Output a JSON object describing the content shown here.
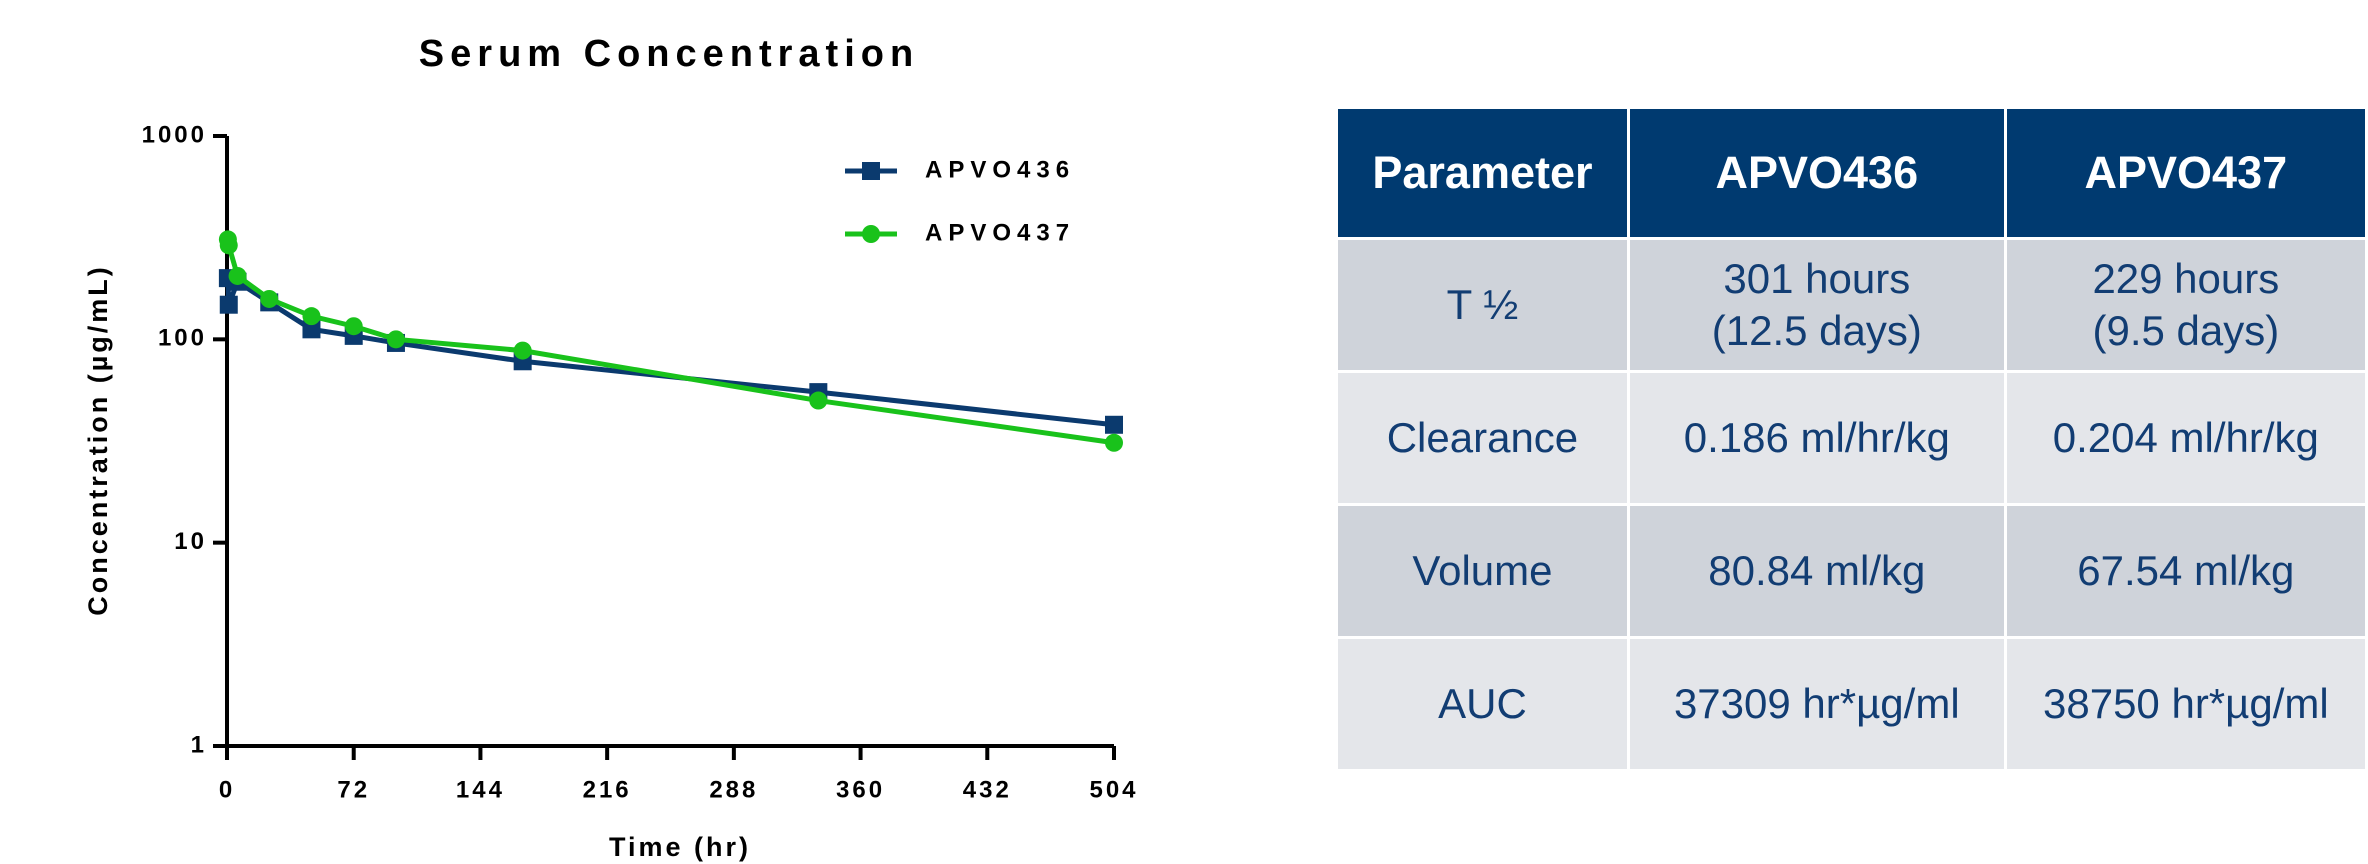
{
  "chart_data": {
    "type": "line",
    "title": "Serum Concentration",
    "x_label": "Time (hr)",
    "y_label": "Concentration (µg/mL)",
    "x": [
      0.5,
      1,
      6,
      24,
      48,
      72,
      96,
      168,
      336,
      504
    ],
    "series": [
      {
        "name": "APVO436",
        "color": "#0b3a6e",
        "marker": "square",
        "values": [
          200,
          148,
          192,
          152,
          112,
          104,
          96,
          78,
          55,
          38
        ]
      },
      {
        "name": "APVO437",
        "color": "#19c21b",
        "marker": "circle",
        "values": [
          310,
          290,
          205,
          158,
          130,
          116,
          100,
          88,
          50,
          31
        ]
      }
    ],
    "xlim": [
      0,
      504
    ],
    "xticks": [
      0,
      72,
      144,
      216,
      288,
      360,
      432,
      504
    ],
    "ylim": [
      1,
      1000
    ],
    "yticks": [
      1,
      10,
      100,
      1000
    ],
    "y_scale": "log",
    "legend": "upper right"
  },
  "table": {
    "header": [
      "Parameter",
      "APVO436",
      "APVO437"
    ],
    "rows": [
      [
        "T ½",
        "301 hours\n(12.5 days)",
        "229 hours\n(9.5 days)"
      ],
      [
        "Clearance",
        "0.186 ml/hr/kg",
        "0.204 ml/hr/kg"
      ],
      [
        "Volume",
        "80.84 ml/kg",
        "67.54 ml/kg"
      ],
      [
        "AUC",
        "37309 hr*µg/ml",
        "38750 hr*µg/ml"
      ]
    ]
  }
}
